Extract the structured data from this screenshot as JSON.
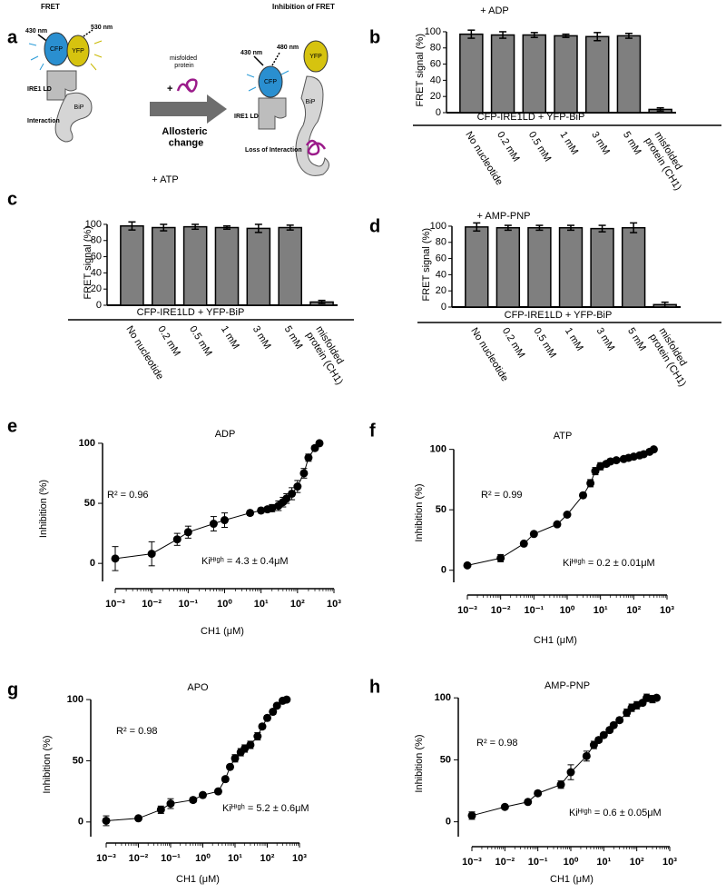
{
  "diagram": {
    "panel": "a",
    "left_title": "FRET",
    "left_excitation": "430 nm",
    "left_emission": "530 nm",
    "left_cfp": "CFP",
    "left_yfp": "YFP",
    "left_ire1": "IRE1 LD",
    "left_bip": "BiP",
    "left_caption": "Interaction",
    "ligand": "misfolded protein",
    "plus": "+",
    "arrow_caption": "Allosteric change",
    "right_title": "Inhibition of FRET",
    "right_excitation": "430 nm",
    "right_emission": "480 nm",
    "right_cfp": "CFP",
    "right_yfp": "YFP",
    "right_ire1": "IRE1 LD",
    "right_bip": "BiP",
    "right_caption": "Loss of Interaction"
  },
  "chart_data": [
    {
      "type": "bar",
      "panel": "b",
      "title": "+ ADP",
      "y_label": "FRET signal  (%)",
      "group_label": "CFP-IRE1LD + YFP-BiP",
      "categories": [
        "No nucleotide",
        "0.2 mM",
        "0.5 mM",
        "1 mM",
        "3 mM",
        "5 mM",
        "misfolded protein (CH1)"
      ],
      "values": [
        97,
        96,
        96,
        95,
        94,
        95,
        4
      ],
      "errors": [
        5,
        4,
        3,
        2,
        5,
        3,
        2
      ],
      "color": "#7f7f7f",
      "ylim": [
        0,
        105
      ],
      "yticks": [
        0,
        20,
        40,
        60,
        80,
        100
      ]
    },
    {
      "type": "bar",
      "panel": "c",
      "title": "+ ATP",
      "y_label": "FRET signal  (%)",
      "group_label": "CFP-IRE1LD + YFP-BiP",
      "categories": [
        "No nucleotide",
        "0.2 mM",
        "0.5 mM",
        "1 mM",
        "3 mM",
        "5 mM",
        "misfolded protein (CH1)"
      ],
      "values": [
        98,
        96,
        97,
        96,
        95,
        96,
        4
      ],
      "errors": [
        5,
        4,
        3,
        2,
        5,
        3,
        2
      ],
      "color": "#7f7f7f",
      "ylim": [
        0,
        105
      ],
      "yticks": [
        0,
        20,
        40,
        60,
        80,
        100
      ]
    },
    {
      "type": "bar",
      "panel": "d",
      "title": "+ AMP-PNP",
      "y_label": "FRET signal  (%)",
      "group_label": "CFP-IRE1LD + YFP-BiP",
      "categories": [
        "No nucleotide",
        "0.2 mM",
        "0.5 mM",
        "1 mM",
        "3 mM",
        "5 mM",
        "misfolded protein (CH1)"
      ],
      "values": [
        99,
        98,
        98,
        98,
        97,
        98,
        3
      ],
      "errors": [
        5,
        3,
        3,
        3,
        4,
        6,
        3
      ],
      "color": "#7f7f7f",
      "ylim": [
        0,
        105
      ],
      "yticks": [
        0,
        20,
        40,
        60,
        80,
        100
      ]
    },
    {
      "type": "scatter",
      "panel": "e",
      "title": "ADP",
      "x_label": "CH1 (μM)",
      "y_label": "Inhibition (%)",
      "x_scale": "log",
      "color": "#000000",
      "x": [
        0.001,
        0.01,
        0.05,
        0.1,
        0.5,
        1,
        5,
        10,
        15,
        20,
        30,
        40,
        50,
        70,
        100,
        150,
        200,
        300,
        400
      ],
      "values": [
        4,
        8,
        20,
        26,
        33,
        36,
        42,
        44,
        45,
        46,
        48,
        51,
        54,
        58,
        64,
        75,
        88,
        96,
        100
      ],
      "errors": [
        10,
        10,
        5,
        5,
        6,
        6,
        2,
        2,
        2,
        3,
        4,
        4,
        4,
        5,
        5,
        4,
        3,
        2,
        1
      ],
      "xlim": [
        0.001,
        1000
      ],
      "xticks": [
        {
          "value": 0.001,
          "label": "10⁻³"
        },
        {
          "value": 0.01,
          "label": "10⁻²"
        },
        {
          "value": 0.1,
          "label": "10⁻¹"
        },
        {
          "value": 1,
          "label": "10⁰"
        },
        {
          "value": 10,
          "label": "10¹"
        },
        {
          "value": 100,
          "label": "10²"
        },
        {
          "value": 1000,
          "label": "10³"
        }
      ],
      "ylim": [
        -15,
        106
      ],
      "yticks": [
        0,
        50,
        100
      ],
      "annotations": [
        "R² = 0.96",
        "Kiᴴⁱᵍʰ = 4.3 ± 0.4μM"
      ]
    },
    {
      "type": "scatter",
      "panel": "f",
      "title": "ATP",
      "x_label": "CH1 (μM)",
      "y_label": "Inhibition (%)",
      "x_scale": "log",
      "color": "#000000",
      "x": [
        0.001,
        0.01,
        0.05,
        0.1,
        0.5,
        1,
        3,
        5,
        7,
        10,
        15,
        20,
        30,
        50,
        70,
        100,
        150,
        200,
        300,
        400
      ],
      "values": [
        4,
        10,
        22,
        30,
        38,
        46,
        62,
        72,
        82,
        86,
        88,
        90,
        91,
        92,
        93,
        94,
        95,
        96,
        98,
        100
      ],
      "errors": [
        1,
        3,
        1,
        1,
        1,
        1,
        2,
        3,
        3,
        3,
        2,
        2,
        1,
        1,
        1,
        1,
        1,
        1,
        1,
        1
      ],
      "xlim": [
        0.001,
        1000
      ],
      "xticks": [
        {
          "value": 0.001,
          "label": "10⁻³"
        },
        {
          "value": 0.01,
          "label": "10⁻²"
        },
        {
          "value": 0.1,
          "label": "10⁻¹"
        },
        {
          "value": 1,
          "label": "10⁰"
        },
        {
          "value": 10,
          "label": "10¹"
        },
        {
          "value": 100,
          "label": "10²"
        },
        {
          "value": 1000,
          "label": "10³"
        }
      ],
      "ylim": [
        -10,
        105
      ],
      "yticks": [
        0,
        50,
        100
      ],
      "annotations": [
        "R² = 0.99",
        "Kiᴴⁱᵍʰ = 0.2 ± 0.01μM"
      ]
    },
    {
      "type": "scatter",
      "panel": "g",
      "title": "APO",
      "x_label": "CH1 (μM)",
      "y_label": "Inhibition (%)",
      "x_scale": "log",
      "color": "#000000",
      "x": [
        0.001,
        0.01,
        0.05,
        0.1,
        0.5,
        1,
        3,
        5,
        7,
        10,
        15,
        20,
        30,
        50,
        70,
        100,
        150,
        200,
        300,
        400
      ],
      "values": [
        1,
        3,
        10,
        15,
        18,
        22,
        25,
        35,
        45,
        52,
        57,
        60,
        63,
        70,
        78,
        85,
        90,
        95,
        99,
        100
      ],
      "errors": [
        4,
        1,
        3,
        4,
        2,
        2,
        2,
        2,
        2,
        3,
        3,
        3,
        3,
        3,
        2,
        2,
        2,
        1,
        1,
        1
      ],
      "xlim": [
        0.001,
        1000
      ],
      "xticks": [
        {
          "value": 0.001,
          "label": "10⁻³"
        },
        {
          "value": 0.01,
          "label": "10⁻²"
        },
        {
          "value": 0.1,
          "label": "10⁻¹"
        },
        {
          "value": 1,
          "label": "10⁰"
        },
        {
          "value": 10,
          "label": "10¹"
        },
        {
          "value": 100,
          "label": "10²"
        },
        {
          "value": 1000,
          "label": "10³"
        }
      ],
      "ylim": [
        -12,
        106
      ],
      "yticks": [
        0,
        50,
        100
      ],
      "annotations": [
        "R² = 0.98",
        "Kiᴴⁱᵍʰ = 5.2 ± 0.6μM"
      ]
    },
    {
      "type": "scatter",
      "panel": "h",
      "title": "AMP-PNP",
      "x_label": "CH1 (μM)",
      "y_label": "Inhibition (%)",
      "x_scale": "log",
      "color": "#000000",
      "x": [
        0.001,
        0.01,
        0.05,
        0.1,
        0.5,
        1,
        3,
        5,
        7,
        10,
        15,
        20,
        30,
        50,
        70,
        100,
        150,
        200,
        300,
        400
      ],
      "values": [
        5,
        12,
        16,
        23,
        30,
        40,
        53,
        62,
        66,
        70,
        74,
        78,
        82,
        88,
        92,
        94,
        96,
        100,
        99,
        100
      ],
      "errors": [
        3,
        1,
        1,
        2,
        3,
        6,
        4,
        3,
        2,
        2,
        2,
        2,
        2,
        3,
        3,
        3,
        2,
        3,
        3,
        2
      ],
      "xlim": [
        0.001,
        1000
      ],
      "xticks": [
        {
          "value": 0.001,
          "label": "10⁻³"
        },
        {
          "value": 0.01,
          "label": "10⁻²"
        },
        {
          "value": 0.1,
          "label": "10⁻¹"
        },
        {
          "value": 1,
          "label": "10⁰"
        },
        {
          "value": 10,
          "label": "10¹"
        },
        {
          "value": 100,
          "label": "10²"
        },
        {
          "value": 1000,
          "label": "10³"
        }
      ],
      "ylim": [
        -12,
        106
      ],
      "yticks": [
        0,
        50,
        100
      ],
      "annotations": [
        "R² = 0.98",
        "Kiᴴⁱᵍʰ = 0.6 ± 0.05μM"
      ]
    }
  ]
}
